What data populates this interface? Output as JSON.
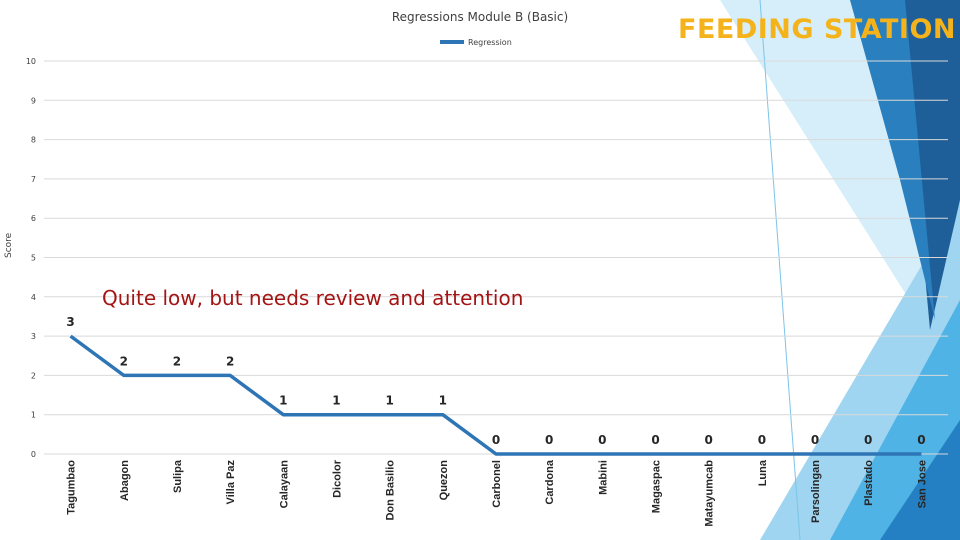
{
  "slide": {
    "title": "FEEDING STATION"
  },
  "colors": {
    "line": "#2e75b6",
    "title": "#f5b31b",
    "annotation": "#a31515",
    "decor_light": "#bde3f5",
    "decor_mid": "#4fb3e6",
    "decor_dark": "#1f5f99"
  },
  "chart_data": {
    "type": "line",
    "title": "Regressions Module B (Basic)",
    "xlabel": "",
    "ylabel": "Score",
    "ylim": [
      0,
      10
    ],
    "yticks": [
      0,
      1,
      2,
      3,
      4,
      5,
      6,
      7,
      8,
      9,
      10
    ],
    "grid": true,
    "legend_position": "top",
    "categories": [
      "Tagumbao",
      "Abagon",
      "Sulipa",
      "Villa Paz",
      "Calayaan",
      "Dicolor",
      "Don Basilio",
      "Quezon",
      "Carbonel",
      "Cardona",
      "Mabini",
      "Magaspac",
      "Matayumcab",
      "Luna",
      "Parsolingan",
      "Plastado",
      "San Jose"
    ],
    "series": [
      {
        "name": "Regression",
        "values": [
          3,
          2,
          2,
          2,
          1,
          1,
          1,
          1,
          0,
          0,
          0,
          0,
          0,
          0,
          0,
          0,
          0
        ]
      }
    ],
    "annotation": "Quite low, but needs review and attention"
  }
}
